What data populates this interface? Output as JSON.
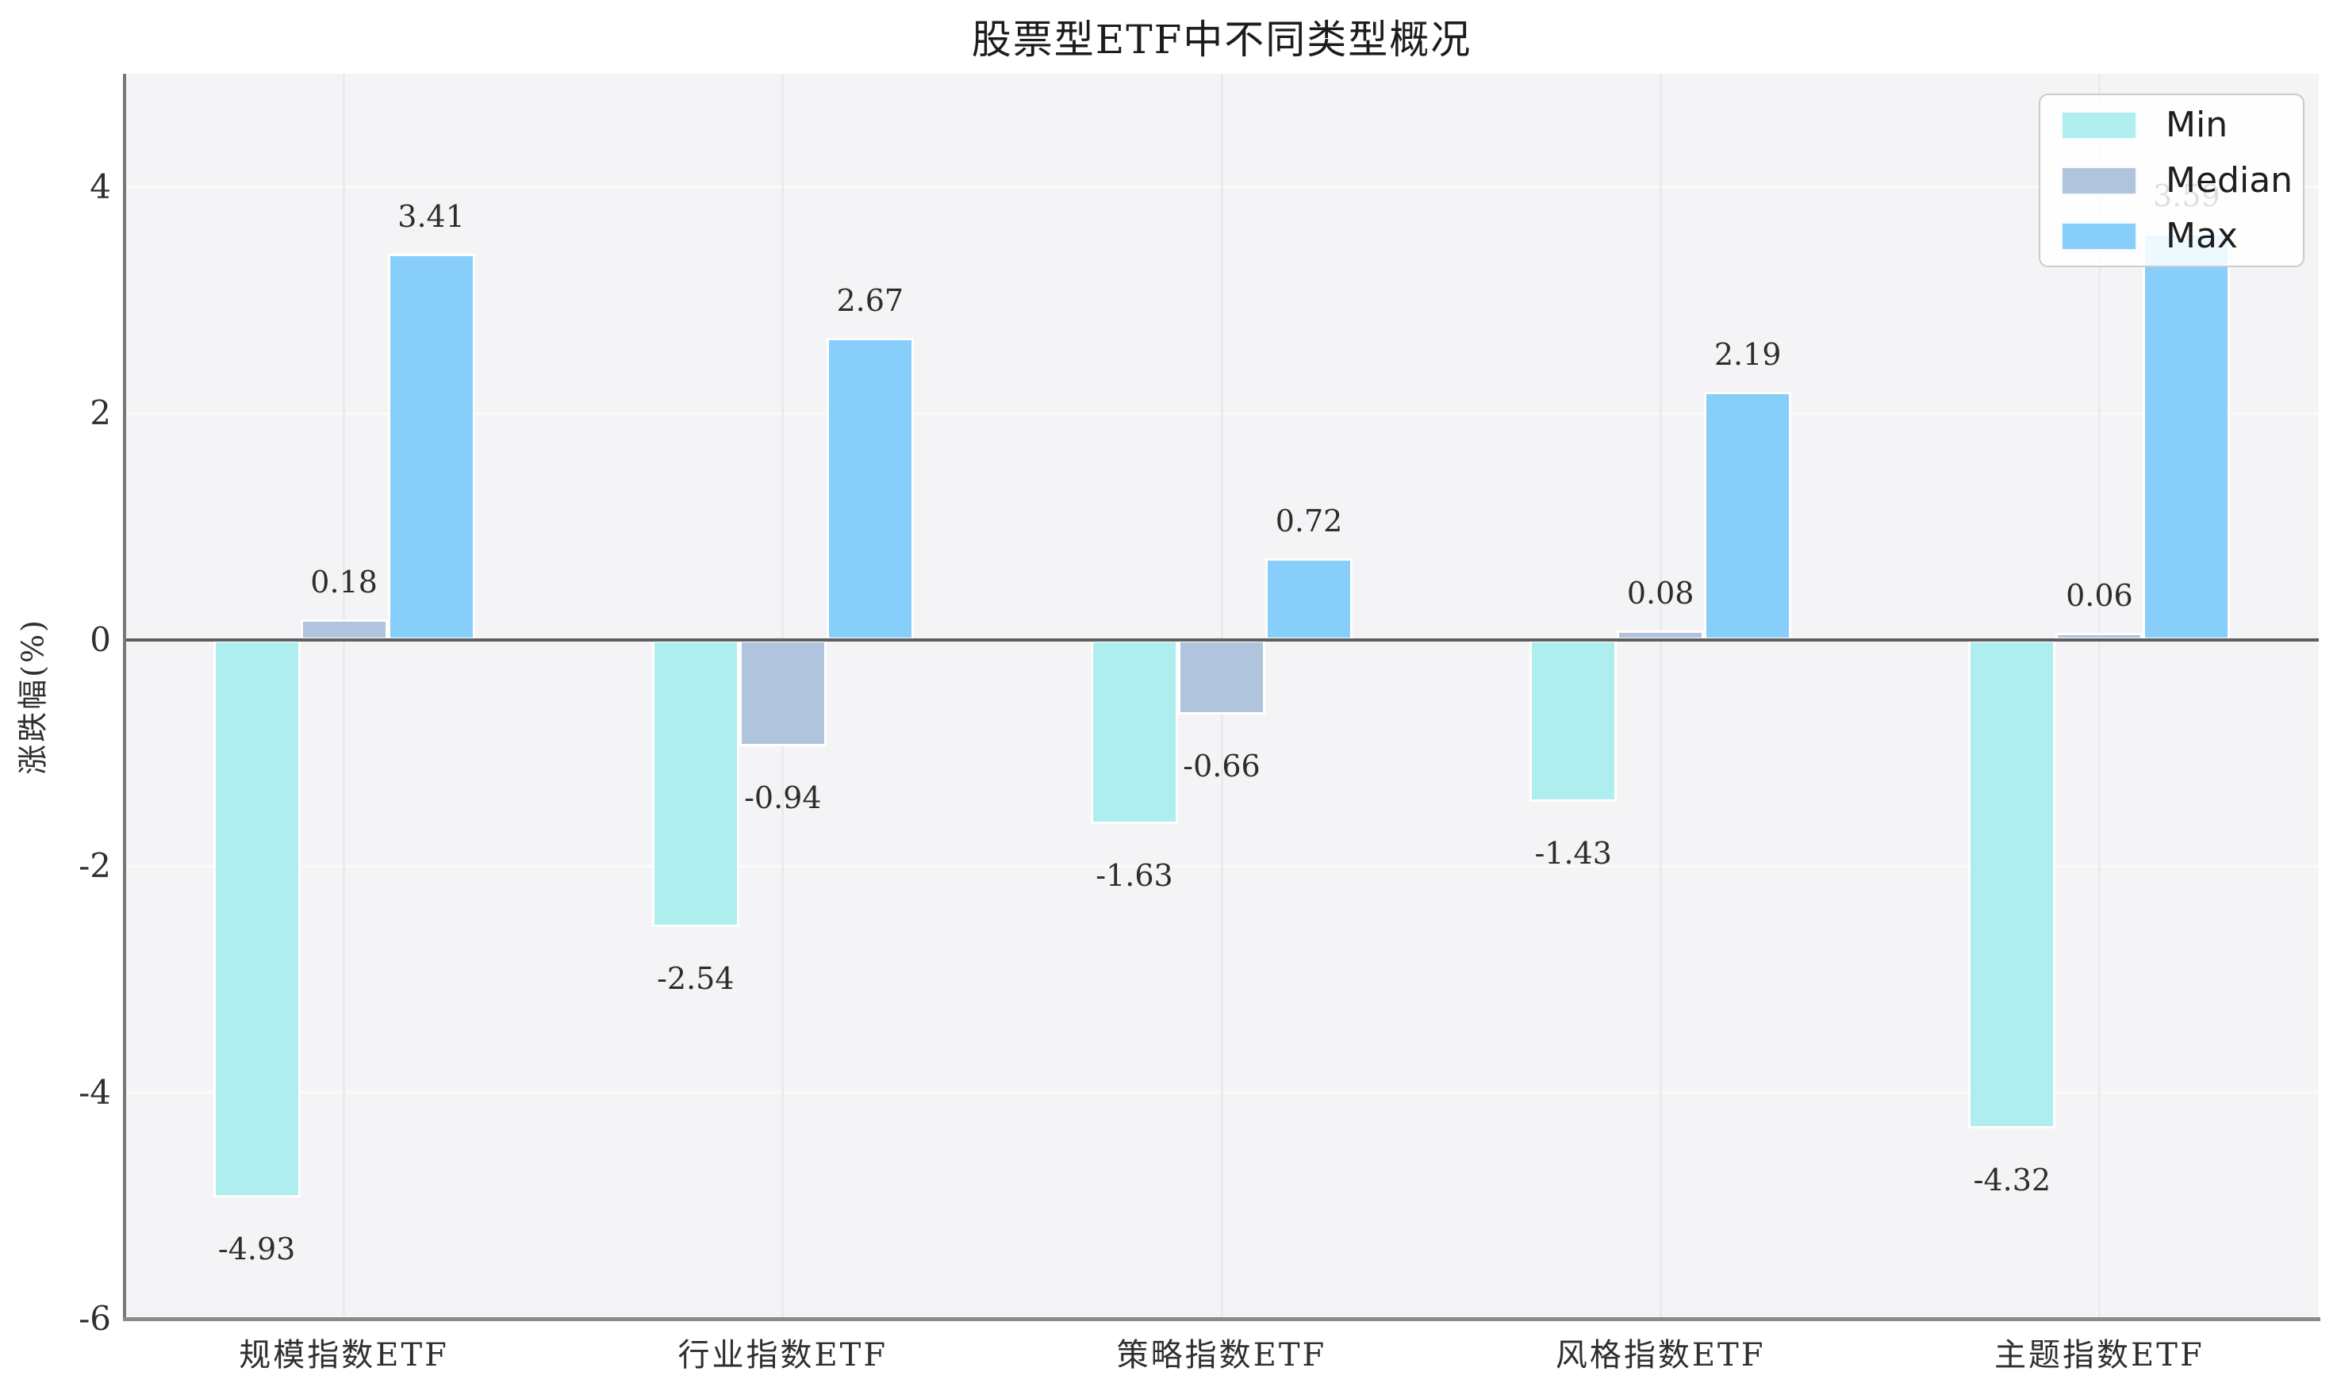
{
  "title": "股票型ETF中不同类型概况",
  "y_axis_label": "涨跌幅(%)",
  "legend": {
    "items": [
      {
        "label": "Min",
        "color": "#AFEEEE"
      },
      {
        "label": "Median",
        "color": "#B0C4DE"
      },
      {
        "label": "Max",
        "color": "#87CEFA"
      }
    ]
  },
  "chart_data": {
    "type": "bar",
    "title": "股票型ETF中不同类型概况",
    "categories": [
      "规模指数ETF",
      "行业指数ETF",
      "策略指数ETF",
      "风格指数ETF",
      "主题指数ETF"
    ],
    "series": [
      {
        "name": "Min",
        "color": "#AFEEEE",
        "values": [
          -4.93,
          -2.54,
          -1.63,
          -1.43,
          -4.32
        ]
      },
      {
        "name": "Median",
        "color": "#B0C4DE",
        "values": [
          0.18,
          -0.94,
          -0.66,
          0.08,
          0.06
        ]
      },
      {
        "name": "Max",
        "color": "#87CEFA",
        "values": [
          3.41,
          2.67,
          0.72,
          2.19,
          3.59
        ]
      }
    ],
    "xlabel": "",
    "ylabel": "涨跌幅(%)",
    "ylim": [
      -6,
      5
    ],
    "yticks": [
      4,
      2,
      0,
      -2,
      -4,
      -6
    ],
    "grid": true,
    "legend_position": "upper right",
    "value_labels_shown": true,
    "colors": {
      "plot_background": "#f4f4f6",
      "figure_background": "#ffffff",
      "horizontal_grid": "#fbfbfc",
      "vertical_grid": "#ebebee",
      "zero_line": "#5f5f5f",
      "spine": "#77777a",
      "text": "#2d2d2d",
      "bar_edge": "#ffffff"
    }
  }
}
